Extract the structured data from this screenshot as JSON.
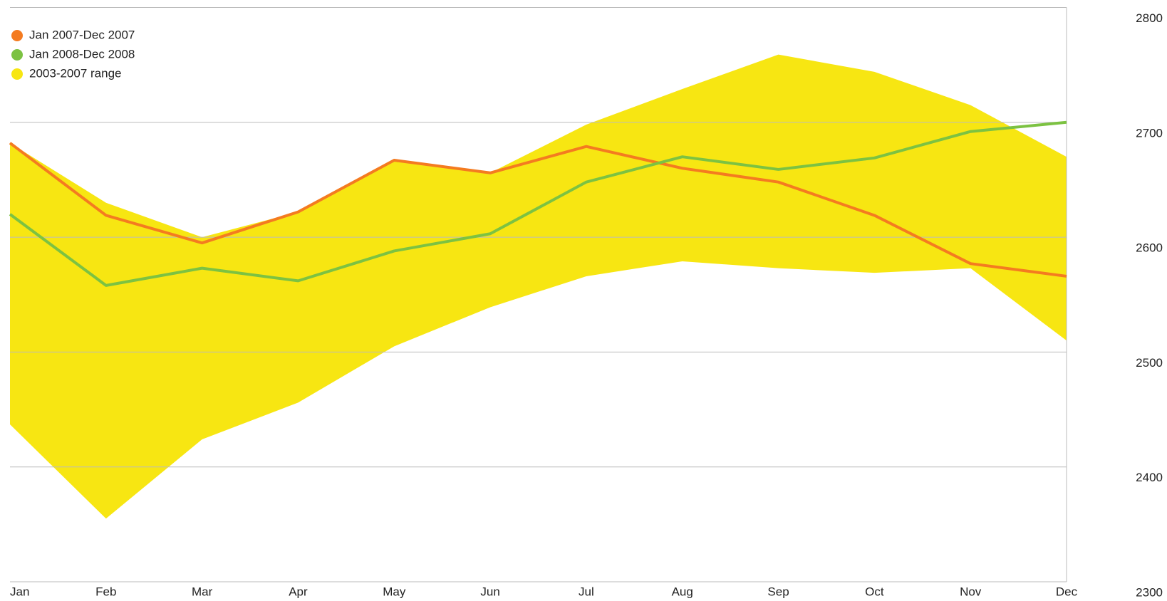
{
  "chart_data": {
    "type": "line",
    "categories": [
      "Jan",
      "Feb",
      "Mar",
      "Apr",
      "May",
      "Jun",
      "Jul",
      "Aug",
      "Sep",
      "Oct",
      "Nov",
      "Dec"
    ],
    "series": [
      {
        "name": "Jan 2007-Dec 2007",
        "color": "#f47b20",
        "values": [
          2682,
          2619,
          2595,
          2622,
          2667,
          2656,
          2679,
          2660,
          2648,
          2619,
          2577,
          2566
        ]
      },
      {
        "name": "Jan 2008-Dec 2008",
        "color": "#7cc242",
        "values": [
          2620,
          2558,
          2573,
          2562,
          2588,
          2603,
          2648,
          2670,
          2659,
          2669,
          2692,
          2700
        ]
      }
    ],
    "range": {
      "name": "2003-2007 range",
      "color": "#f7e612",
      "upper": [
        2682,
        2630,
        2600,
        2622,
        2667,
        2656,
        2698,
        2729,
        2759,
        2744,
        2715,
        2670
      ],
      "lower": [
        2437,
        2355,
        2424,
        2456,
        2505,
        2539,
        2566,
        2579,
        2573,
        2569,
        2573,
        2510
      ]
    },
    "ylim": [
      2300,
      2800
    ],
    "yticks": [
      2300,
      2400,
      2500,
      2600,
      2700,
      2800
    ],
    "grid": true,
    "legend": "top-left"
  }
}
